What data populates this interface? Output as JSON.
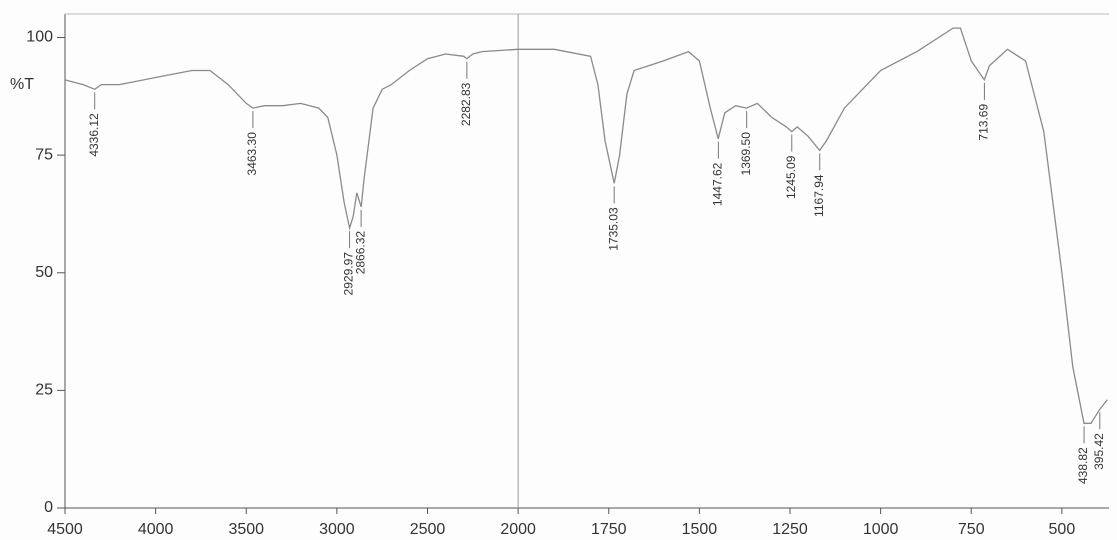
{
  "chart_data": {
    "type": "line",
    "y_label": "%T",
    "xlim": [
      4500,
      370
    ],
    "xticks": [
      4500,
      4000,
      3500,
      3000,
      2500,
      2000,
      1750,
      1500,
      1250,
      1000,
      750,
      500
    ],
    "xscale_change": {
      "at": 2000,
      "factor": 2
    },
    "ylim": [
      0,
      105
    ],
    "yticks": [
      0,
      25,
      50,
      75,
      100
    ],
    "series": [
      {
        "color": "#8a8a8a",
        "x": [
          4500,
          4400,
          4336,
          4300,
          4200,
          4000,
          3800,
          3700,
          3600,
          3500,
          3463,
          3400,
          3300,
          3200,
          3100,
          3050,
          3000,
          2960,
          2930,
          2910,
          2890,
          2866,
          2850,
          2800,
          2750,
          2700,
          2600,
          2500,
          2400,
          2300,
          2283,
          2250,
          2200,
          2000,
          1900,
          1800,
          1780,
          1760,
          1735,
          1720,
          1700,
          1680,
          1600,
          1530,
          1500,
          1470,
          1448,
          1430,
          1400,
          1370,
          1340,
          1300,
          1260,
          1245,
          1230,
          1200,
          1168,
          1150,
          1100,
          1000,
          900,
          800,
          780,
          750,
          714,
          700,
          650,
          600,
          550,
          500,
          470,
          439,
          420,
          395,
          375
        ],
        "values": [
          91,
          90,
          89,
          90,
          90,
          91.5,
          93,
          93,
          90,
          86,
          85,
          85.5,
          85.5,
          86,
          85,
          83,
          75,
          65,
          59.5,
          62,
          67,
          64,
          70,
          85,
          89,
          90,
          93,
          95.5,
          96.5,
          96,
          95.5,
          96.5,
          97,
          97.5,
          97.5,
          96,
          90,
          78,
          69,
          75,
          88,
          93,
          95,
          97,
          95,
          85,
          78.5,
          84,
          85.5,
          85,
          86,
          83,
          81,
          80,
          81,
          79,
          76,
          78,
          85,
          93,
          97,
          102,
          102,
          95,
          91,
          94,
          97.5,
          95,
          80,
          50,
          30,
          18,
          18,
          21,
          23
        ]
      }
    ],
    "peak_x": [
      4336.12,
      3463.3,
      2929.97,
      2866.32,
      2282.83,
      1735.03,
      1447.62,
      1369.5,
      1245.09,
      1167.94,
      713.69,
      438.82,
      395.42
    ],
    "peak_labels": [
      "4336.12",
      "3463.30",
      "2929.97",
      "2866.32",
      "2282.83",
      "1735.03",
      "1447.62",
      "1369.50",
      "1245.09",
      "1167.94",
      "713.69",
      "438.82",
      "395.42"
    ],
    "peak_y": [
      89,
      85,
      59.5,
      64,
      95.5,
      69,
      78.5,
      85,
      80,
      76,
      91,
      18,
      21
    ]
  }
}
